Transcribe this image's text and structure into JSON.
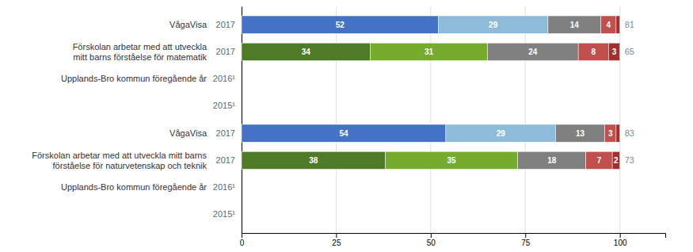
{
  "chart_data": {
    "type": "bar",
    "orientation": "horizontal",
    "stacked": true,
    "data_labels": true,
    "grid": true,
    "categories": [
      "2017",
      "2017",
      "2016¹",
      "2015¹",
      "2017",
      "2017",
      "2016¹",
      "2015¹"
    ],
    "row_labels": [
      "VågaVisa",
      "Förskolan arbetar med att utveckla\nmitt barns förståelse för matematik",
      "Upplands-Bro kommun föregående år",
      null,
      "VågaVisa",
      "Förskolan arbetar med att utveckla mitt barns\nförståelse för naturvetenskap och teknik",
      "Upplands-Bro kommun föregående år",
      null
    ],
    "series": [
      {
        "values": [
          52,
          34,
          null,
          null,
          54,
          38,
          null,
          null
        ],
        "value_labels": [
          "52",
          "34",
          null,
          null,
          "54",
          "38",
          null,
          null
        ],
        "colors": [
          "#4472c4",
          "#4f7a28",
          null,
          null,
          "#4472c4",
          "#4f7a28",
          null,
          null
        ]
      },
      {
        "values": [
          29,
          31,
          null,
          null,
          29,
          35,
          null,
          null
        ],
        "value_labels": [
          "29",
          "31",
          null,
          null,
          "29",
          "35",
          null,
          null
        ],
        "colors": [
          "#8fbbda",
          "#76ac2e",
          null,
          null,
          "#8fbbda",
          "#76ac2e",
          null,
          null
        ]
      },
      {
        "values": [
          14,
          24,
          null,
          null,
          13,
          18,
          null,
          null
        ],
        "value_labels": [
          "14",
          "24",
          null,
          null,
          "13",
          "18",
          null,
          null
        ],
        "colors": [
          "#808080",
          "#808080",
          null,
          null,
          "#808080",
          "#808080",
          null,
          null
        ]
      },
      {
        "values": [
          4,
          8,
          null,
          null,
          3,
          7,
          null,
          null
        ],
        "value_labels": [
          "4",
          "8",
          null,
          null,
          "3",
          "7",
          null,
          null
        ],
        "colors": [
          "#c0504d",
          "#c0504d",
          null,
          null,
          "#c0504d",
          "#c0504d",
          null,
          null
        ]
      },
      {
        "values": [
          1,
          3,
          null,
          null,
          1,
          2,
          null,
          null
        ],
        "value_labels": [
          null,
          "3",
          null,
          null,
          null,
          "2",
          null,
          null
        ],
        "colors": [
          "#a03030",
          "#a03030",
          null,
          null,
          "#a03030",
          "#a03030",
          null,
          null
        ]
      }
    ],
    "totals": [
      81,
      65,
      null,
      null,
      83,
      73,
      null,
      null
    ],
    "xlim": [
      0,
      112
    ],
    "xticks": [
      0,
      25,
      50,
      75,
      100
    ]
  }
}
